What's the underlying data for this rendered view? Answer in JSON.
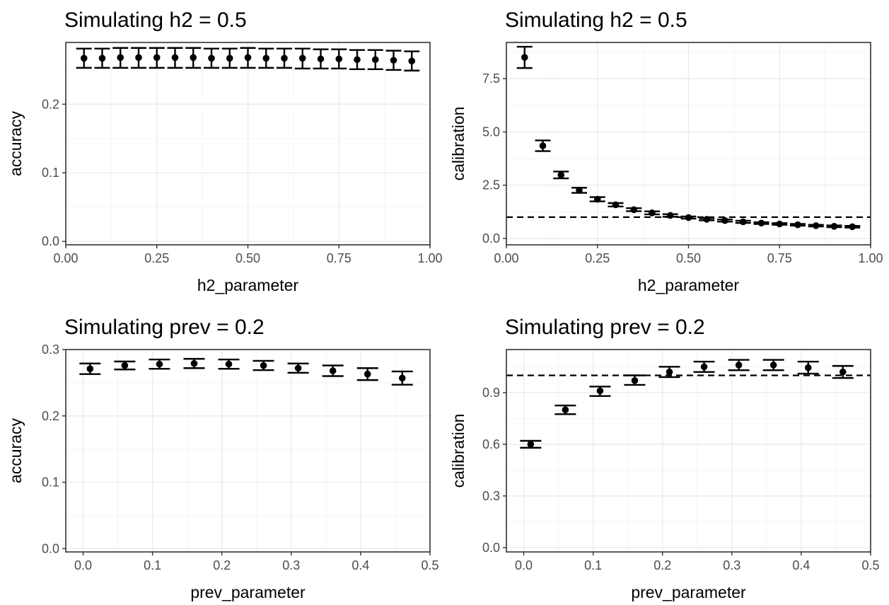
{
  "chart_data": [
    {
      "type": "scatter",
      "title": "Simulating h2 = 0.5",
      "xlabel": "h2_parameter",
      "ylabel": "accuracy",
      "xlim": [
        0,
        1
      ],
      "ylim": [
        -0.005,
        0.29
      ],
      "xticks": [
        0,
        0.25,
        0.5,
        0.75,
        1
      ],
      "xtick_labels": [
        "0.00",
        "0.25",
        "0.50",
        "0.75",
        "1.00"
      ],
      "yticks": [
        0,
        0.1,
        0.2
      ],
      "ytick_labels": [
        "0.0",
        "0.1",
        "0.2"
      ],
      "grid": true,
      "error_bars": true,
      "x": [
        0.05,
        0.1,
        0.15,
        0.2,
        0.25,
        0.3,
        0.35,
        0.4,
        0.45,
        0.5,
        0.55,
        0.6,
        0.65,
        0.7,
        0.75,
        0.8,
        0.85,
        0.9,
        0.95
      ],
      "y": [
        0.267,
        0.267,
        0.268,
        0.268,
        0.268,
        0.268,
        0.268,
        0.267,
        0.267,
        0.268,
        0.267,
        0.267,
        0.267,
        0.266,
        0.266,
        0.265,
        0.265,
        0.264,
        0.263
      ],
      "ymin": [
        0.253,
        0.253,
        0.253,
        0.253,
        0.253,
        0.253,
        0.253,
        0.253,
        0.253,
        0.253,
        0.253,
        0.253,
        0.252,
        0.252,
        0.252,
        0.251,
        0.251,
        0.25,
        0.249
      ],
      "ymax": [
        0.281,
        0.281,
        0.282,
        0.282,
        0.282,
        0.282,
        0.282,
        0.281,
        0.281,
        0.282,
        0.281,
        0.281,
        0.281,
        0.28,
        0.28,
        0.279,
        0.279,
        0.278,
        0.277
      ]
    },
    {
      "type": "scatter",
      "title": "Simulating h2 = 0.5",
      "xlabel": "h2_parameter",
      "ylabel": "calibration",
      "xlim": [
        0,
        1
      ],
      "ylim": [
        -0.3,
        9.2
      ],
      "xticks": [
        0,
        0.25,
        0.5,
        0.75,
        1
      ],
      "xtick_labels": [
        "0.00",
        "0.25",
        "0.50",
        "0.75",
        "1.00"
      ],
      "yticks": [
        0,
        2.5,
        5,
        7.5
      ],
      "ytick_labels": [
        "0.0",
        "2.5",
        "5.0",
        "7.5"
      ],
      "grid": true,
      "error_bars": true,
      "reference_line_y": 1,
      "x": [
        0.05,
        0.1,
        0.15,
        0.2,
        0.25,
        0.3,
        0.35,
        0.4,
        0.45,
        0.5,
        0.55,
        0.6,
        0.65,
        0.7,
        0.75,
        0.8,
        0.85,
        0.9,
        0.95
      ],
      "y": [
        8.5,
        4.35,
        2.98,
        2.26,
        1.84,
        1.58,
        1.35,
        1.2,
        1.08,
        0.98,
        0.9,
        0.84,
        0.78,
        0.72,
        0.68,
        0.64,
        0.6,
        0.57,
        0.55
      ],
      "ymin": [
        8.0,
        4.1,
        2.82,
        2.14,
        1.74,
        1.5,
        1.28,
        1.13,
        1.02,
        0.93,
        0.85,
        0.79,
        0.73,
        0.68,
        0.64,
        0.6,
        0.56,
        0.53,
        0.51
      ],
      "ymax": [
        9.0,
        4.6,
        3.14,
        2.38,
        1.94,
        1.66,
        1.42,
        1.27,
        1.14,
        1.03,
        0.95,
        0.89,
        0.83,
        0.76,
        0.72,
        0.68,
        0.64,
        0.61,
        0.59
      ]
    },
    {
      "type": "scatter",
      "title": "Simulating prev = 0.2",
      "xlabel": "prev_parameter",
      "ylabel": "accuracy",
      "xlim": [
        -0.025,
        0.5
      ],
      "ylim": [
        -0.005,
        0.3
      ],
      "xticks": [
        0,
        0.1,
        0.2,
        0.3,
        0.4,
        0.5
      ],
      "xtick_labels": [
        "0.0",
        "0.1",
        "0.2",
        "0.3",
        "0.4",
        "0.5"
      ],
      "yticks": [
        0,
        0.1,
        0.2,
        0.3
      ],
      "ytick_labels": [
        "0.0",
        "0.1",
        "0.2",
        "0.3"
      ],
      "grid": true,
      "error_bars": true,
      "x": [
        0.01,
        0.06,
        0.11,
        0.16,
        0.21,
        0.26,
        0.31,
        0.36,
        0.41,
        0.46
      ],
      "y": [
        0.271,
        0.276,
        0.278,
        0.279,
        0.278,
        0.276,
        0.272,
        0.268,
        0.263,
        0.257
      ],
      "ymin": [
        0.263,
        0.27,
        0.271,
        0.272,
        0.271,
        0.269,
        0.265,
        0.26,
        0.254,
        0.247
      ],
      "ymax": [
        0.279,
        0.282,
        0.285,
        0.286,
        0.285,
        0.283,
        0.279,
        0.276,
        0.272,
        0.267
      ]
    },
    {
      "type": "scatter",
      "title": "Simulating prev = 0.2",
      "xlabel": "prev_parameter",
      "ylabel": "calibration",
      "xlim": [
        -0.025,
        0.5
      ],
      "ylim": [
        -0.025,
        1.15
      ],
      "xticks": [
        0,
        0.1,
        0.2,
        0.3,
        0.4,
        0.5
      ],
      "xtick_labels": [
        "0.0",
        "0.1",
        "0.2",
        "0.3",
        "0.4",
        "0.5"
      ],
      "yticks": [
        0,
        0.3,
        0.6,
        0.9
      ],
      "ytick_labels": [
        "0.0",
        "0.3",
        "0.6",
        "0.9"
      ],
      "grid": true,
      "error_bars": true,
      "reference_line_y": 1,
      "x": [
        0.01,
        0.06,
        0.11,
        0.16,
        0.21,
        0.26,
        0.31,
        0.36,
        0.41,
        0.46
      ],
      "y": [
        0.6,
        0.8,
        0.91,
        0.97,
        1.02,
        1.05,
        1.06,
        1.06,
        1.045,
        1.02
      ],
      "ymin": [
        0.58,
        0.775,
        0.88,
        0.945,
        0.99,
        1.02,
        1.03,
        1.03,
        1.01,
        0.985
      ],
      "ymax": [
        0.62,
        0.825,
        0.935,
        1.0,
        1.05,
        1.08,
        1.09,
        1.09,
        1.08,
        1.055
      ]
    }
  ]
}
